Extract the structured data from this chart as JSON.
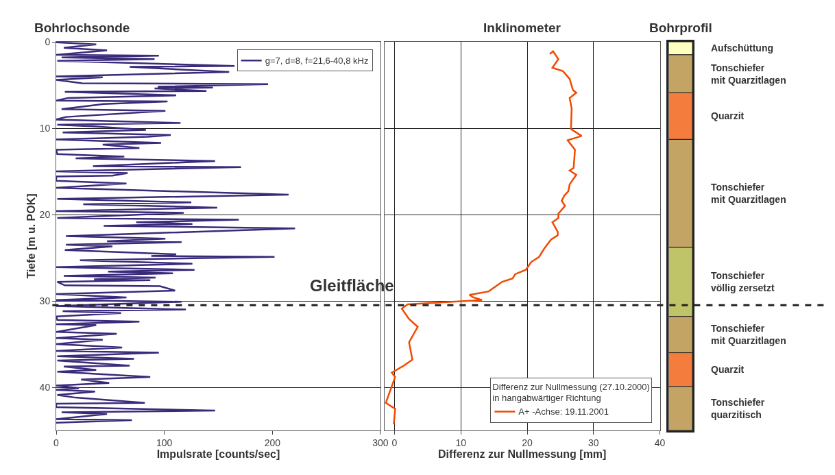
{
  "chart_data": [
    {
      "type": "line",
      "title": "Bohrlochsonde",
      "xlabel": "Impulsrate [counts/sec]",
      "ylabel": "Tiefe [m u. POK]",
      "xlim": [
        0,
        300
      ],
      "xticks": [
        0,
        100,
        200,
        300
      ],
      "ylim": [
        45,
        0
      ],
      "yticks": [
        0,
        10,
        20,
        30,
        40
      ],
      "grid": "y",
      "legend": "top right",
      "marker": "none",
      "line_style": "solid",
      "ref_lines": [
        {
          "axis": "y",
          "value": 30.5,
          "label": "Gleitfläche",
          "color": "#222222",
          "line_style": "dashed"
        }
      ],
      "series": [
        {
          "name": "g=7, d=8, f=21,6-40,8 kHz",
          "color": "#3a2a7a",
          "x": [
            0,
            37,
            7,
            47,
            0,
            95,
            5,
            91,
            1,
            165,
            68,
            160,
            0,
            43,
            0,
            24,
            196,
            94,
            145,
            91,
            139,
            8,
            111,
            11,
            0,
            103,
            44,
            5,
            101,
            9,
            0,
            115,
            1,
            36,
            83,
            6,
            106,
            85,
            0,
            97,
            43,
            77,
            0,
            1,
            63,
            18,
            147,
            34,
            171,
            0,
            66,
            52,
            0,
            0,
            65,
            0,
            80,
            215,
            1,
            125,
            25,
            149,
            0,
            118,
            1,
            169,
            74,
            126,
            44,
            221,
            9,
            101,
            47,
            116,
            9,
            52,
            8,
            111,
            88,
            202,
            22,
            126,
            0,
            128,
            48,
            108,
            7,
            92,
            35,
            87,
            1,
            8,
            96,
            110,
            0,
            65,
            0,
            116,
            0,
            120,
            6,
            60,
            0,
            1,
            77,
            0,
            37,
            0,
            56,
            0,
            43,
            0,
            61,
            0,
            95,
            1,
            72,
            1,
            68,
            7,
            37,
            1,
            87,
            23,
            49,
            0,
            21,
            0,
            36,
            1,
            18,
            82,
            0,
            0,
            147,
            5,
            47,
            0,
            70,
            0
          ],
          "values": [
            0.05,
            0.3,
            0.7,
            1.0,
            1.5,
            1.6,
            1.8,
            2.0,
            2.2,
            2.8,
            2.9,
            3.5,
            4.0,
            4.1,
            4.4,
            4.8,
            4.9,
            5.2,
            5.3,
            5.4,
            5.7,
            5.8,
            6.2,
            6.5,
            6.8,
            6.9,
            7.2,
            7.8,
            8.0,
            8.7,
            9.0,
            9.4,
            9.6,
            9.8,
            10.2,
            10.5,
            10.8,
            11.0,
            11.3,
            11.7,
            11.9,
            12.3,
            12.5,
            13.0,
            13.3,
            13.5,
            13.8,
            14.4,
            14.5,
            15.0,
            15.2,
            15.5,
            15.6,
            16.1,
            16.4,
            16.9,
            17.2,
            17.7,
            18.2,
            18.6,
            18.8,
            19.2,
            19.6,
            19.8,
            20.4,
            20.6,
            20.9,
            21.1,
            21.3,
            21.6,
            22.5,
            22.8,
            23.1,
            23.2,
            23.5,
            23.7,
            24.1,
            24.6,
            24.8,
            24.9,
            25.3,
            25.7,
            26.1,
            26.4,
            26.6,
            26.8,
            27.1,
            27.3,
            27.5,
            27.6,
            27.8,
            28.2,
            28.3,
            28.8,
            29.2,
            29.6,
            29.9,
            30.1,
            30.6,
            31.0,
            31.2,
            31.4,
            31.8,
            32.2,
            32.4,
            32.7,
            32.8,
            33.6,
            33.8,
            34.3,
            34.5,
            35.0,
            35.4,
            35.8,
            36.0,
            36.4,
            36.7,
            36.9,
            37.5,
            37.6,
            38.0,
            38.2,
            38.8,
            39.1,
            39.5,
            39.8,
            40.1,
            40.3,
            40.5,
            40.9,
            41.2,
            41.8,
            41.9,
            42.3,
            42.7,
            42.9,
            43.1,
            43.7,
            43.8,
            44.1
          ]
        }
      ]
    },
    {
      "type": "line",
      "title": "Inklinometer",
      "xlabel": "Differenz zur Nullmessung [mm]",
      "xlim": [
        -1.5,
        40
      ],
      "xticks": [
        0,
        10,
        20,
        30,
        40
      ],
      "ylim": [
        45,
        0
      ],
      "yticks": [
        0,
        10,
        20,
        30,
        40
      ],
      "tick_labels": "x",
      "grid": true,
      "legend": "bottom right",
      "legend_title": "Differenz zur Nullmessung (27.10.2000)\nin hangabwärtiger Richtung",
      "marker": "none",
      "line_style": "solid",
      "series": [
        {
          "name": "A+ -Achse: 19.11.2001",
          "color": "#f04a00",
          "x": [
            23.4,
            23.9,
            24.7,
            23.8,
            25.4,
            26.4,
            26.9,
            27.4,
            26.4,
            26.7,
            26.6,
            28.2,
            26.1,
            27.2,
            27.0,
            26.4,
            27.4,
            26.4,
            26.2,
            25.6,
            25.2,
            25.7,
            24.7,
            24.7,
            23.8,
            24.6,
            24.6,
            23.6,
            22.6,
            21.8,
            20.6,
            19.8,
            18.2,
            17.8,
            16.2,
            14.2,
            11.3,
            11.9,
            13.2,
            2.0,
            1.1,
            2.2,
            3.5,
            2.2,
            2.7,
            1.4,
            -0.4,
            0.1,
            -1.3,
            0.1,
            -0.1
          ],
          "values": [
            1.4,
            1.1,
            2.0,
            3.0,
            3.4,
            4.3,
            5.6,
            5.9,
            6.5,
            7.7,
            10.1,
            10.9,
            11.4,
            12.5,
            14.6,
            14.9,
            15.4,
            16.5,
            17.3,
            17.8,
            18.4,
            19.0,
            19.9,
            20.4,
            20.9,
            22.0,
            22.4,
            22.9,
            23.9,
            24.9,
            25.5,
            26.4,
            26.9,
            27.4,
            27.8,
            28.9,
            29.3,
            29.6,
            29.9,
            30.4,
            30.9,
            32.1,
            33.0,
            34.8,
            36.8,
            37.5,
            38.3,
            38.8,
            41.8,
            42.5,
            44.3
          ]
        }
      ]
    },
    {
      "type": "bar",
      "title": "Bohrprofil",
      "stacked": true,
      "categories": [
        null
      ],
      "ylim": [
        45,
        0
      ],
      "tick_labels": false,
      "grid": false,
      "legend": false,
      "series": [
        {
          "name": "Aufschüttung",
          "color": "#ffffc0",
          "values": [
            1.5
          ]
        },
        {
          "name": "Tonschiefer\nmit Quarzitlagen",
          "color": "#c4a464",
          "values": [
            4.4
          ]
        },
        {
          "name": "Quarzit",
          "color": "#f47c3c",
          "values": [
            5.4
          ]
        },
        {
          "name": "Tonschiefer\nmit Quarzitlagen",
          "color": "#c4a464",
          "values": [
            12.5
          ]
        },
        {
          "name": "Tonschiefer\nvöllig zersetzt",
          "color": "#c0c468",
          "values": [
            8.0
          ]
        },
        {
          "name": "Tonschiefer\nmit Quarzitlagen",
          "color": "#c4a464",
          "values": [
            4.2
          ]
        },
        {
          "name": "Quarzit",
          "color": "#f47c3c",
          "values": [
            3.9
          ]
        },
        {
          "name": "Tonschiefer\nquarzitisch",
          "color": "#c4a464",
          "values": [
            5.1
          ]
        }
      ]
    }
  ]
}
